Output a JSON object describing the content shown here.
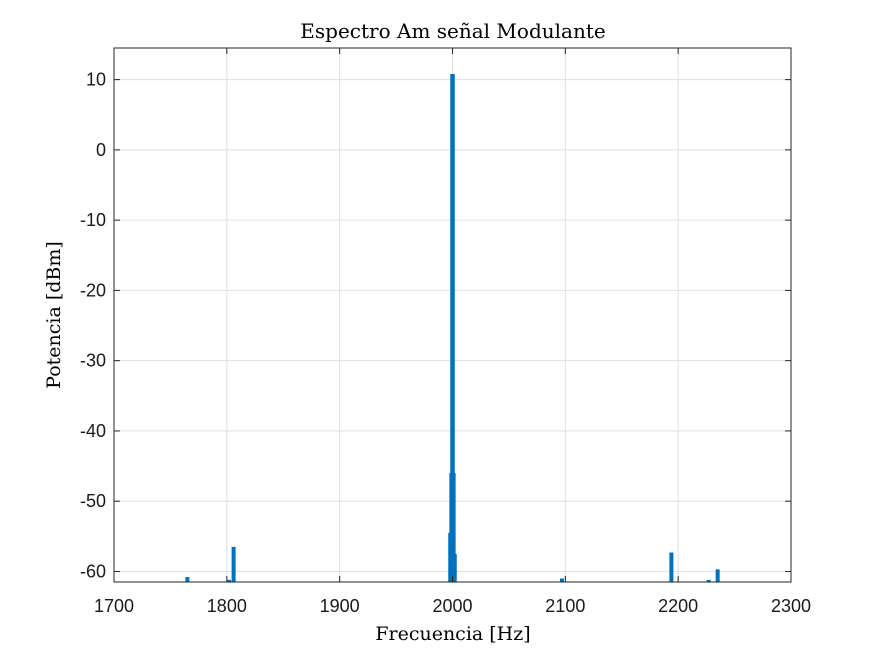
{
  "chart_data": {
    "type": "bar",
    "title": "Espectro Am señal Modulante",
    "xlabel": "Frecuencia [Hz]",
    "ylabel": "Potencia [dBm]",
    "xlim": [
      1700,
      2300
    ],
    "ylim": [
      -61.5,
      14.5
    ],
    "xticks": [
      1700,
      1800,
      1900,
      2000,
      2100,
      2200,
      2300
    ],
    "yticks": [
      10,
      0,
      -10,
      -20,
      -30,
      -40,
      -50,
      -60
    ],
    "grid": true,
    "color": "#0072bd",
    "series": [
      {
        "x": [
          1765,
          1802,
          1806,
          1998,
          1999,
          2000,
          2001,
          2002,
          2097,
          2194,
          2227,
          2235
        ],
        "values": [
          -60.8,
          -61.2,
          -56.5,
          -54.5,
          -46.0,
          10.8,
          -46.0,
          -57.5,
          -61.0,
          -57.3,
          -61.2,
          -59.7
        ]
      }
    ]
  }
}
